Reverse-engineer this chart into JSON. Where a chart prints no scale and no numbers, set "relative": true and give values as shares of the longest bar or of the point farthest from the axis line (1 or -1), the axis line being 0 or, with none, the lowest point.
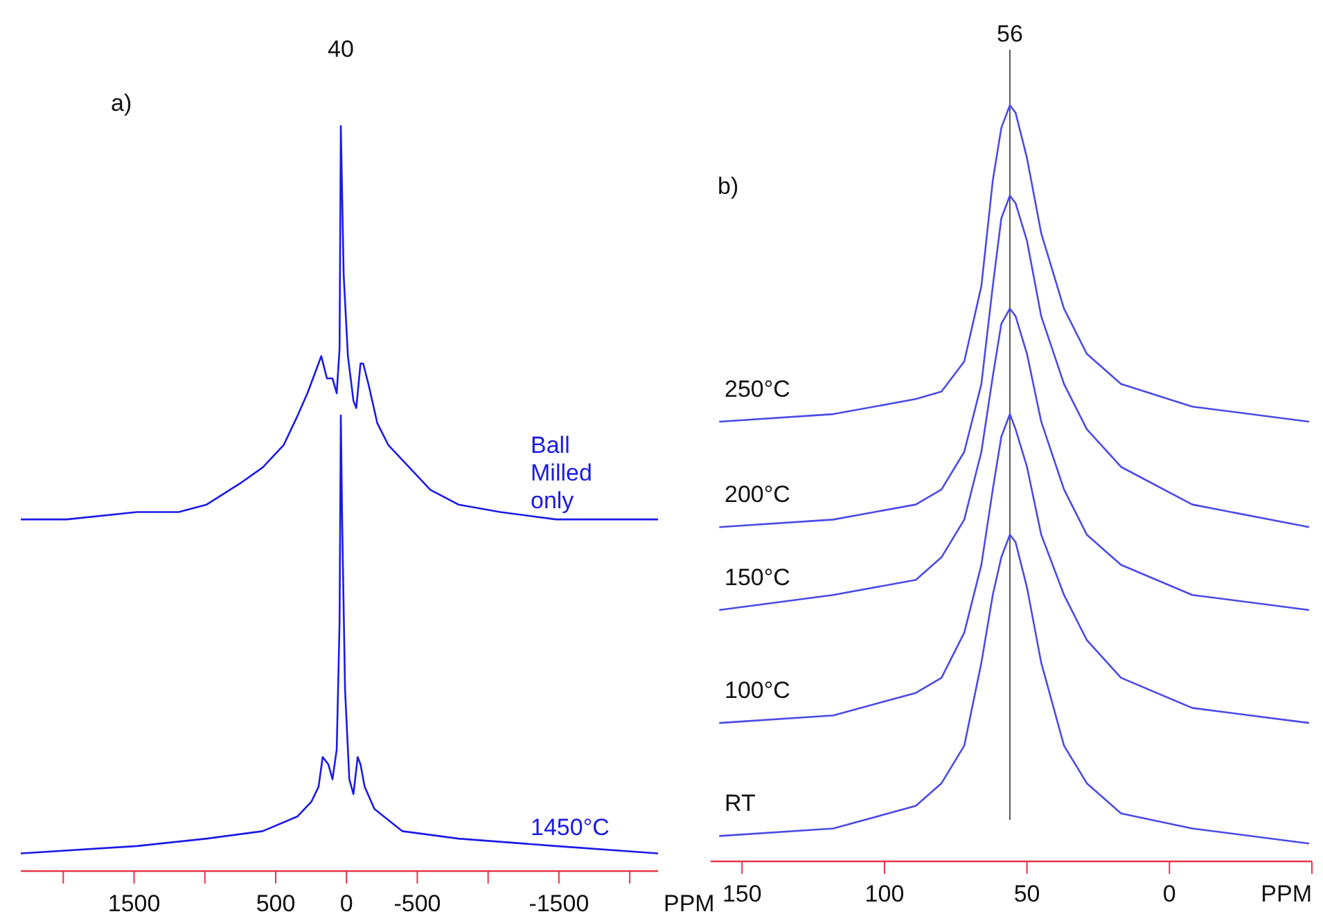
{
  "chart_data": [
    {
      "type": "line",
      "title": "a)",
      "xlabel": "PPM",
      "relative": true,
      "xlim": [
        2300,
        -2200
      ],
      "xticks": [
        {
          "value": 2000,
          "label": null
        },
        1500,
        {
          "value": 1000,
          "label": null
        },
        500,
        0,
        -500,
        {
          "value": -1000,
          "label": null
        },
        -1500,
        {
          "value": -2000,
          "label": null
        }
      ],
      "annotations": [
        {
          "text": "40",
          "x": 40,
          "y": 1
        }
      ],
      "series": [
        {
          "name": "Ball Milled only",
          "color": "#1a1ae6",
          "x": [
            2300,
            1975,
            1480,
            1185,
            987,
            740,
            592,
            444,
            345,
            276,
            217,
            178,
            138,
            99,
            69,
            49,
            40,
            20,
            -10,
            -49,
            -69,
            -99,
            -118,
            -158,
            -217,
            -296,
            -444,
            -592,
            -790,
            -1086,
            -1480,
            -2200
          ],
          "values": [
            0.47,
            0.47,
            0.48,
            0.48,
            0.49,
            0.52,
            0.54,
            0.57,
            0.61,
            0.64,
            0.67,
            0.69,
            0.66,
            0.66,
            0.64,
            0.7,
            1.0,
            0.8,
            0.69,
            0.63,
            0.62,
            0.68,
            0.68,
            0.65,
            0.6,
            0.57,
            0.54,
            0.51,
            0.49,
            0.48,
            0.47,
            0.47
          ]
        },
        {
          "name": "1450°C",
          "color": "#1a1ae6",
          "x": [
            2300,
            1480,
            987,
            592,
            345,
            247,
            197,
            168,
            128,
            99,
            69,
            49,
            40,
            30,
            10,
            -20,
            -49,
            -79,
            -99,
            -128,
            -197,
            -395,
            -790,
            -1480,
            -2200
          ],
          "values": [
            0.02,
            0.03,
            0.04,
            0.05,
            0.07,
            0.09,
            0.11,
            0.15,
            0.14,
            0.12,
            0.16,
            0.33,
            0.61,
            0.46,
            0.24,
            0.12,
            0.1,
            0.15,
            0.14,
            0.11,
            0.08,
            0.05,
            0.04,
            0.03,
            0.02
          ]
        }
      ]
    },
    {
      "type": "line",
      "title": "b)",
      "xlabel": "PPM",
      "relative": true,
      "xlim": [
        161,
        -50
      ],
      "xticks": [
        150,
        100,
        50,
        0,
        {
          "value": -50,
          "label": null
        }
      ],
      "x": [
        158,
        118,
        89,
        80,
        72,
        66,
        62,
        59,
        56,
        54,
        50,
        45,
        37,
        29,
        17,
        -8,
        -49
      ],
      "ref_lines": [
        {
          "axis": "x",
          "value": 56,
          "label": "56",
          "color": "#555555"
        }
      ],
      "series": [
        {
          "name": "250°C",
          "color": "#4a4ae6",
          "values": [
            0.58,
            0.59,
            0.61,
            0.62,
            0.66,
            0.76,
            0.9,
            0.97,
            1.0,
            0.99,
            0.93,
            0.83,
            0.73,
            0.67,
            0.63,
            0.6,
            0.58
          ]
        },
        {
          "name": "200°C",
          "color": "#4a4ae6",
          "values": [
            0.44,
            0.45,
            0.47,
            0.49,
            0.54,
            0.63,
            0.76,
            0.85,
            0.88,
            0.87,
            0.82,
            0.72,
            0.63,
            0.57,
            0.52,
            0.47,
            0.44
          ]
        },
        {
          "name": "150°C",
          "color": "#4a4ae6",
          "values": [
            0.33,
            0.35,
            0.37,
            0.4,
            0.45,
            0.54,
            0.64,
            0.71,
            0.73,
            0.72,
            0.67,
            0.58,
            0.49,
            0.43,
            0.39,
            0.35,
            0.33
          ]
        },
        {
          "name": "100°C",
          "color": "#4a4ae6",
          "values": [
            0.18,
            0.19,
            0.22,
            0.24,
            0.3,
            0.39,
            0.49,
            0.56,
            0.59,
            0.57,
            0.52,
            0.43,
            0.35,
            0.29,
            0.24,
            0.2,
            0.18
          ]
        },
        {
          "name": "RT",
          "color": "#4a4ae6",
          "values": [
            0.03,
            0.04,
            0.07,
            0.1,
            0.15,
            0.26,
            0.35,
            0.4,
            0.43,
            0.42,
            0.36,
            0.26,
            0.15,
            0.1,
            0.06,
            0.04,
            0.02
          ]
        }
      ]
    }
  ]
}
